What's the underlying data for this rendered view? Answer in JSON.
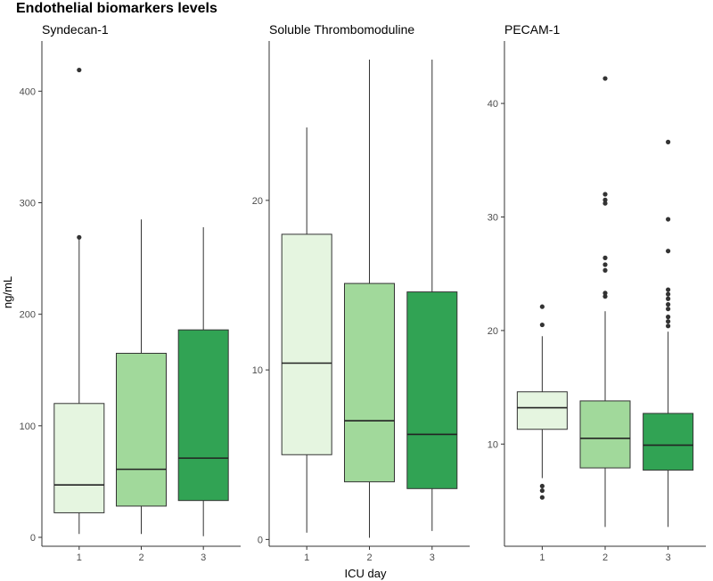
{
  "chart_data": {
    "type": "box",
    "title": "Endothelial biomarkers levels",
    "xlabel": "ICU day",
    "ylabel": "ng/mL",
    "categories": [
      "1",
      "2",
      "3"
    ],
    "colors": [
      "#e5f5e0",
      "#a1d99b",
      "#31a354"
    ],
    "panels": [
      {
        "name": "Syndecan-1",
        "ylim": [
          -8,
          445
        ],
        "yticks": [
          0,
          100,
          200,
          300,
          400
        ],
        "boxes": [
          {
            "day": "1",
            "whisker_low": 3,
            "q1": 22,
            "median": 47,
            "q3": 120,
            "whisker_high": 268,
            "outliers": [
              269,
              419
            ]
          },
          {
            "day": "2",
            "whisker_low": 3,
            "q1": 28,
            "median": 61,
            "q3": 165,
            "whisker_high": 285,
            "outliers": []
          },
          {
            "day": "3",
            "whisker_low": 1,
            "q1": 33,
            "median": 71,
            "q3": 186,
            "whisker_high": 278,
            "outliers": []
          }
        ]
      },
      {
        "name": "Soluble Thrombomoduline",
        "ylim": [
          -0.4,
          29.4
        ],
        "yticks": [
          0,
          10,
          20
        ],
        "boxes": [
          {
            "day": "1",
            "whisker_low": 0.4,
            "q1": 5.0,
            "median": 10.4,
            "q3": 18.0,
            "whisker_high": 24.3,
            "outliers": []
          },
          {
            "day": "2",
            "whisker_low": 0.1,
            "q1": 3.4,
            "median": 7.0,
            "q3": 15.1,
            "whisker_high": 28.3,
            "outliers": []
          },
          {
            "day": "3",
            "whisker_low": 0.5,
            "q1": 3.0,
            "median": 6.2,
            "q3": 14.6,
            "whisker_high": 28.3,
            "outliers": []
          }
        ]
      },
      {
        "name": "PECAM-1",
        "ylim": [
          1.0,
          45.5
        ],
        "yticks": [
          10,
          20,
          30,
          40
        ],
        "boxes": [
          {
            "day": "1",
            "whisker_low": 7.0,
            "q1": 11.3,
            "median": 13.2,
            "q3": 14.6,
            "whisker_high": 19.5,
            "outliers": [
              5.3,
              5.9,
              6.3,
              20.5,
              22.1
            ]
          },
          {
            "day": "2",
            "whisker_low": 2.7,
            "q1": 7.9,
            "median": 10.5,
            "q3": 13.8,
            "whisker_high": 21.7,
            "outliers": [
              23.0,
              23.3,
              25.3,
              25.8,
              26.4,
              31.2,
              31.5,
              32.0,
              42.2
            ]
          },
          {
            "day": "3",
            "whisker_low": 2.7,
            "q1": 7.7,
            "median": 9.9,
            "q3": 12.7,
            "whisker_high": 19.9,
            "outliers": [
              20.4,
              20.8,
              21.2,
              21.9,
              22.3,
              22.8,
              23.2,
              23.6,
              27.0,
              29.8,
              36.6
            ]
          }
        ]
      }
    ]
  }
}
